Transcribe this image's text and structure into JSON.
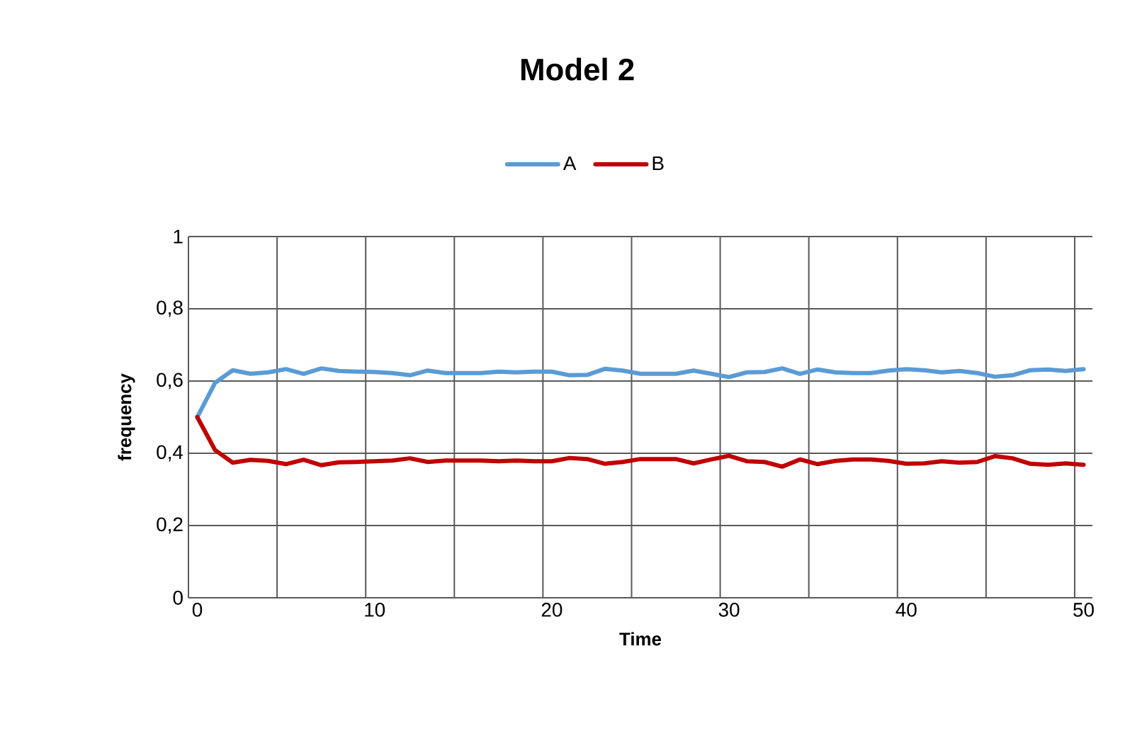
{
  "chart_data": {
    "type": "line",
    "title": "Model 2",
    "xlabel": "Time",
    "ylabel": "frequency",
    "x": [
      0,
      1,
      2,
      3,
      4,
      5,
      6,
      7,
      8,
      9,
      10,
      11,
      12,
      13,
      14,
      15,
      16,
      17,
      18,
      19,
      20,
      21,
      22,
      23,
      24,
      25,
      26,
      27,
      28,
      29,
      30,
      31,
      32,
      33,
      34,
      35,
      36,
      37,
      38,
      39,
      40,
      41,
      42,
      43,
      44,
      45,
      46,
      47,
      48,
      49,
      50
    ],
    "series": [
      {
        "name": "A",
        "color": "#5b9bd5",
        "values": [
          0.5,
          0.595,
          0.63,
          0.62,
          0.624,
          0.633,
          0.62,
          0.635,
          0.628,
          0.626,
          0.625,
          0.622,
          0.616,
          0.629,
          0.622,
          0.622,
          0.622,
          0.626,
          0.624,
          0.626,
          0.626,
          0.616,
          0.617,
          0.634,
          0.629,
          0.62,
          0.62,
          0.62,
          0.629,
          0.62,
          0.611,
          0.624,
          0.625,
          0.635,
          0.62,
          0.632,
          0.624,
          0.622,
          0.622,
          0.629,
          0.633,
          0.63,
          0.624,
          0.628,
          0.622,
          0.612,
          0.616,
          0.63,
          0.632,
          0.628,
          0.633
        ]
      },
      {
        "name": "B",
        "color": "#c00000",
        "values": [
          0.5,
          0.409,
          0.374,
          0.382,
          0.379,
          0.37,
          0.382,
          0.367,
          0.375,
          0.376,
          0.378,
          0.38,
          0.386,
          0.376,
          0.38,
          0.38,
          0.38,
          0.378,
          0.38,
          0.378,
          0.378,
          0.387,
          0.384,
          0.371,
          0.376,
          0.384,
          0.384,
          0.384,
          0.372,
          0.383,
          0.393,
          0.378,
          0.376,
          0.363,
          0.383,
          0.37,
          0.379,
          0.383,
          0.383,
          0.379,
          0.371,
          0.372,
          0.378,
          0.374,
          0.376,
          0.392,
          0.386,
          0.371,
          0.368,
          0.372,
          0.368
        ]
      }
    ],
    "xlim": [
      -0.5,
      50.5
    ],
    "xticks": [
      {
        "value": -0.5,
        "label": null
      },
      0,
      {
        "value": 4.5,
        "label": null
      },
      {
        "value": 9.5,
        "label": null
      },
      10,
      {
        "value": 14.5,
        "label": null
      },
      {
        "value": 19.5,
        "label": null
      },
      20,
      {
        "value": 24.5,
        "label": null
      },
      {
        "value": 29.5,
        "label": null
      },
      30,
      {
        "value": 34.5,
        "label": null
      },
      {
        "value": 39.5,
        "label": null
      },
      40,
      {
        "value": 44.5,
        "label": null
      },
      {
        "value": 49.5,
        "label": null
      },
      50
    ],
    "ylim": [
      0,
      1
    ],
    "yticks": [
      0,
      {
        "value": 0.2,
        "label": "0,2"
      },
      {
        "value": 0.4,
        "label": "0,4"
      },
      {
        "value": 0.6,
        "label": "0,6"
      },
      {
        "value": 0.8,
        "label": "0,8"
      },
      1
    ],
    "grid": true,
    "legend": "top",
    "line_style": "solid"
  }
}
